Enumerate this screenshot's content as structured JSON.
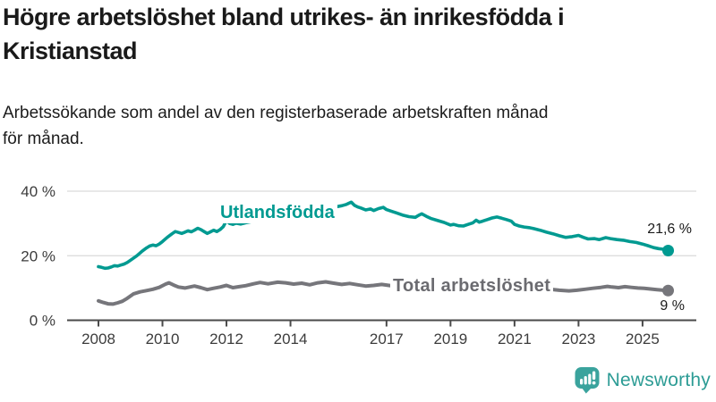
{
  "chart_data": {
    "type": "line",
    "title": "Högre arbetslöshet bland utrikes- än inrikesfödda i\nKristianstad",
    "subtitle": "Arbetssökande som andel av den registerbaserade arbetskraften månad\nför månad.",
    "unit": "%",
    "xlabel": "",
    "ylabel": "",
    "xlim": [
      2007.6,
      2026.6
    ],
    "ylim": [
      0,
      44
    ],
    "grid": true,
    "legend_position": "inline-labels",
    "y_ticks": [
      {
        "value": 0,
        "label": "0 %"
      },
      {
        "value": 20,
        "label": "20 %"
      },
      {
        "value": 40,
        "label": "40 %"
      }
    ],
    "x_ticks": [
      {
        "value": 2008,
        "label": "2008"
      },
      {
        "value": 2010,
        "label": "2010"
      },
      {
        "value": 2012,
        "label": "2012"
      },
      {
        "value": 2014,
        "label": "2014"
      },
      {
        "value": 2017,
        "label": "2017"
      },
      {
        "value": 2019,
        "label": "2019"
      },
      {
        "value": 2021,
        "label": "2021"
      },
      {
        "value": 2023,
        "label": "2023"
      },
      {
        "value": 2025,
        "label": "2025"
      }
    ],
    "series": [
      {
        "name": "Utlandsfödda",
        "label": "Utlandsfödda",
        "color": "#009a91",
        "line_width": 3.6,
        "end_value": 21.6,
        "end_label": "21,6 %",
        "points": [
          [
            2008,
            16.6
          ],
          [
            2008.1,
            16.4
          ],
          [
            2008.2,
            16.1
          ],
          [
            2008.3,
            16.2
          ],
          [
            2008.4,
            16.5
          ],
          [
            2008.5,
            16.9
          ],
          [
            2008.6,
            16.8
          ],
          [
            2008.7,
            17.1
          ],
          [
            2008.8,
            17.4
          ],
          [
            2008.9,
            17.9
          ],
          [
            2009,
            18.6
          ],
          [
            2009.2,
            20
          ],
          [
            2009.35,
            21.3
          ],
          [
            2009.5,
            22.4
          ],
          [
            2009.6,
            23
          ],
          [
            2009.7,
            23.3
          ],
          [
            2009.8,
            23.1
          ],
          [
            2009.9,
            23.6
          ],
          [
            2010,
            24.4
          ],
          [
            2010.15,
            25.7
          ],
          [
            2010.3,
            26.8
          ],
          [
            2010.4,
            27.5
          ],
          [
            2010.5,
            27.2
          ],
          [
            2010.6,
            26.9
          ],
          [
            2010.7,
            27.3
          ],
          [
            2010.8,
            27.7
          ],
          [
            2010.9,
            27.4
          ],
          [
            2011,
            27.9
          ],
          [
            2011.1,
            28.5
          ],
          [
            2011.2,
            28.1
          ],
          [
            2011.3,
            27.5
          ],
          [
            2011.4,
            26.9
          ],
          [
            2011.5,
            27.4
          ],
          [
            2011.6,
            27.9
          ],
          [
            2011.7,
            27.5
          ],
          [
            2011.8,
            28.1
          ],
          [
            2011.9,
            29
          ],
          [
            2012,
            30.9
          ],
          [
            2012.1,
            30
          ],
          [
            2012.2,
            29.7
          ],
          [
            2012.3,
            30.1
          ],
          [
            2012.45,
            29.8
          ],
          [
            2012.6,
            30.2
          ],
          [
            2012.8,
            30.6
          ],
          [
            2013,
            30.9
          ],
          [
            2013.2,
            31.2
          ],
          [
            2013.4,
            31
          ],
          [
            2013.6,
            31.4
          ],
          [
            2013.8,
            31.8
          ],
          [
            2014,
            32.2
          ],
          [
            2014.2,
            32.5
          ],
          [
            2014.4,
            32.9
          ],
          [
            2014.6,
            33.3
          ],
          [
            2014.8,
            33.7
          ],
          [
            2015,
            34.2
          ],
          [
            2015.2,
            34.6
          ],
          [
            2015.4,
            35.1
          ],
          [
            2015.6,
            35.5
          ],
          [
            2015.75,
            35.9
          ],
          [
            2015.9,
            36.6
          ],
          [
            2016,
            35.6
          ],
          [
            2016.1,
            35.1
          ],
          [
            2016.2,
            34.8
          ],
          [
            2016.35,
            34.2
          ],
          [
            2016.5,
            34.5
          ],
          [
            2016.6,
            34
          ],
          [
            2016.75,
            34.6
          ],
          [
            2016.9,
            35
          ],
          [
            2017,
            34.3
          ],
          [
            2017.15,
            33.8
          ],
          [
            2017.3,
            33.3
          ],
          [
            2017.5,
            32.6
          ],
          [
            2017.7,
            32.1
          ],
          [
            2017.9,
            31.9
          ],
          [
            2018,
            32.5
          ],
          [
            2018.1,
            33
          ],
          [
            2018.25,
            32.2
          ],
          [
            2018.4,
            31.5
          ],
          [
            2018.6,
            30.9
          ],
          [
            2018.8,
            30.3
          ],
          [
            2019,
            29.5
          ],
          [
            2019.1,
            29.7
          ],
          [
            2019.25,
            29.3
          ],
          [
            2019.4,
            29.2
          ],
          [
            2019.55,
            29.7
          ],
          [
            2019.7,
            30.2
          ],
          [
            2019.8,
            31
          ],
          [
            2019.9,
            30.4
          ],
          [
            2020,
            30.7
          ],
          [
            2020.15,
            31.2
          ],
          [
            2020.3,
            31.7
          ],
          [
            2020.45,
            32
          ],
          [
            2020.6,
            31.6
          ],
          [
            2020.75,
            31.2
          ],
          [
            2020.9,
            30.7
          ],
          [
            2021,
            29.7
          ],
          [
            2021.15,
            29.2
          ],
          [
            2021.3,
            28.9
          ],
          [
            2021.45,
            28.7
          ],
          [
            2021.6,
            28.4
          ],
          [
            2021.8,
            27.9
          ],
          [
            2022,
            27.3
          ],
          [
            2022.2,
            26.8
          ],
          [
            2022.4,
            26.2
          ],
          [
            2022.6,
            25.7
          ],
          [
            2022.8,
            25.9
          ],
          [
            2023,
            26.3
          ],
          [
            2023.15,
            25.7
          ],
          [
            2023.3,
            25.2
          ],
          [
            2023.5,
            25.3
          ],
          [
            2023.65,
            25
          ],
          [
            2023.85,
            25.6
          ],
          [
            2024,
            25.3
          ],
          [
            2024.2,
            25
          ],
          [
            2024.4,
            24.8
          ],
          [
            2024.6,
            24.4
          ],
          [
            2024.8,
            24.1
          ],
          [
            2025,
            23.6
          ],
          [
            2025.2,
            23
          ],
          [
            2025.35,
            22.5
          ],
          [
            2025.5,
            22.2
          ],
          [
            2025.65,
            22
          ],
          [
            2025.8,
            21.6
          ]
        ]
      },
      {
        "name": "Total arbetslöshet",
        "label": "Total arbetslöshet",
        "color": "#76767b",
        "line_width": 4,
        "end_value": 9,
        "end_label": "9 %",
        "points": [
          [
            2008,
            6
          ],
          [
            2008.15,
            5.5
          ],
          [
            2008.3,
            5.1
          ],
          [
            2008.45,
            5
          ],
          [
            2008.6,
            5.4
          ],
          [
            2008.75,
            5.9
          ],
          [
            2008.9,
            6.8
          ],
          [
            2009.1,
            8.2
          ],
          [
            2009.3,
            8.8
          ],
          [
            2009.5,
            9.2
          ],
          [
            2009.7,
            9.6
          ],
          [
            2009.9,
            10.2
          ],
          [
            2010.1,
            11.2
          ],
          [
            2010.2,
            11.6
          ],
          [
            2010.35,
            10.9
          ],
          [
            2010.5,
            10.3
          ],
          [
            2010.7,
            10
          ],
          [
            2010.9,
            10.4
          ],
          [
            2011,
            10.6
          ],
          [
            2011.2,
            10.1
          ],
          [
            2011.4,
            9.5
          ],
          [
            2011.6,
            9.9
          ],
          [
            2011.8,
            10.3
          ],
          [
            2012,
            10.8
          ],
          [
            2012.2,
            10.1
          ],
          [
            2012.4,
            10.4
          ],
          [
            2012.6,
            10.7
          ],
          [
            2012.85,
            11.3
          ],
          [
            2013.05,
            11.7
          ],
          [
            2013.3,
            11.3
          ],
          [
            2013.6,
            11.8
          ],
          [
            2013.85,
            11.6
          ],
          [
            2014.1,
            11.2
          ],
          [
            2014.35,
            11.5
          ],
          [
            2014.6,
            11
          ],
          [
            2014.85,
            11.6
          ],
          [
            2015.1,
            11.9
          ],
          [
            2015.35,
            11.5
          ],
          [
            2015.6,
            11.1
          ],
          [
            2015.85,
            11.4
          ],
          [
            2016.1,
            11
          ],
          [
            2016.35,
            10.6
          ],
          [
            2016.6,
            10.8
          ],
          [
            2016.85,
            11.1
          ],
          [
            2017,
            10.9
          ],
          [
            2017.3,
            10.5
          ],
          [
            2017.6,
            10.2
          ],
          [
            2017.9,
            9.9
          ],
          [
            2018.2,
            9.7
          ],
          [
            2018.5,
            9.5
          ],
          [
            2018.8,
            9.4
          ],
          [
            2019.1,
            9.3
          ],
          [
            2019.4,
            9.5
          ],
          [
            2019.7,
            9.8
          ],
          [
            2019.95,
            10.1
          ],
          [
            2020.15,
            10.8
          ],
          [
            2020.35,
            11.4
          ],
          [
            2020.55,
            11.7
          ],
          [
            2020.75,
            11.4
          ],
          [
            2020.95,
            11.1
          ],
          [
            2021.2,
            10.7
          ],
          [
            2021.5,
            10.3
          ],
          [
            2021.8,
            9.9
          ],
          [
            2022.1,
            9.6
          ],
          [
            2022.4,
            9.3
          ],
          [
            2022.7,
            9.1
          ],
          [
            2022.95,
            9.3
          ],
          [
            2023.2,
            9.6
          ],
          [
            2023.45,
            9.9
          ],
          [
            2023.7,
            10.2
          ],
          [
            2023.9,
            10.5
          ],
          [
            2024.05,
            10.3
          ],
          [
            2024.25,
            10.1
          ],
          [
            2024.45,
            10.4
          ],
          [
            2024.65,
            10.2
          ],
          [
            2024.85,
            10
          ],
          [
            2025.05,
            9.9
          ],
          [
            2025.25,
            9.7
          ],
          [
            2025.45,
            9.5
          ],
          [
            2025.65,
            9.3
          ],
          [
            2025.8,
            9.2
          ]
        ]
      }
    ],
    "style": {
      "gridline_color": "#dadada",
      "axis_color": "#4a4a4a",
      "tick_label_color": "#3c3c3c"
    }
  },
  "branding": {
    "name": "Newsworthy",
    "color": "#2d9c95",
    "icon": "bar-chart-speech-bubble",
    "icon_color": "#3aa39d"
  }
}
